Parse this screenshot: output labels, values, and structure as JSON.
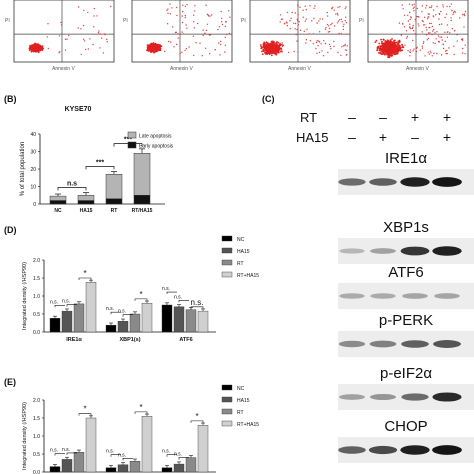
{
  "flow_panel": {
    "y_axis_label": "PI",
    "x_axis_label": "Annexin V",
    "plots": [
      {
        "name": "NC"
      },
      {
        "name": "HA15"
      },
      {
        "name": "RT"
      },
      {
        "name": "RT/HA15"
      }
    ]
  },
  "panel_b": {
    "label": "(B)",
    "chart_data": {
      "type": "bar",
      "stacked": true,
      "title": "KYSE70",
      "xlabel": "",
      "ylabel": "% of total population",
      "categories": [
        "NC",
        "HA15",
        "RT",
        "RT/HA15"
      ],
      "ylim": [
        0,
        40
      ],
      "yticks": [
        "0",
        "10",
        "20",
        "30",
        "40"
      ],
      "series": [
        {
          "name": "Early apoptosis",
          "color": "#111111",
          "values": [
            2,
            2,
            3,
            5
          ]
        },
        {
          "name": "Late apoptosis",
          "color": "#b4b4b4",
          "values": [
            2.5,
            3,
            14,
            24
          ]
        }
      ],
      "error": [
        1.2,
        1.5,
        1.5,
        2.5
      ],
      "significance": [
        {
          "from": 0,
          "to": 1,
          "text": "n.s"
        },
        {
          "from": 1,
          "to": 2,
          "text": "***"
        },
        {
          "from": 2,
          "to": 3,
          "text": "***"
        }
      ]
    }
  },
  "panel_c": {
    "label": "(C)",
    "conditions": [
      {
        "name": "RT",
        "signs": [
          "–",
          "–",
          "+",
          "+"
        ]
      },
      {
        "name": "HA15",
        "signs": [
          "–",
          "+",
          "–",
          "+"
        ]
      }
    ],
    "blots": [
      {
        "name": "IRE1α",
        "intensity": [
          0.55,
          0.6,
          0.9,
          0.95
        ]
      },
      {
        "name": "XBP1s",
        "intensity": [
          0.2,
          0.3,
          0.8,
          0.9
        ]
      },
      {
        "name": "ATF6",
        "intensity": [
          0.25,
          0.25,
          0.28,
          0.28
        ]
      },
      {
        "name": "p-PERK",
        "intensity": [
          0.4,
          0.45,
          0.6,
          0.65
        ]
      },
      {
        "name": "p-eIF2α",
        "intensity": [
          0.3,
          0.35,
          0.55,
          0.85
        ]
      },
      {
        "name": "CHOP",
        "intensity": [
          0.6,
          0.7,
          0.9,
          0.95
        ]
      }
    ]
  },
  "panel_d": {
    "label": "(D)",
    "chart_data": {
      "type": "bar",
      "ylabel": "Integrated density (/HSP90)",
      "ylim": [
        0,
        2
      ],
      "yticks": [
        "0.0",
        "0.5",
        "1.0",
        "1.5",
        "2.0"
      ],
      "categories": [
        "IRE1α",
        "XBP1(s)",
        "ATF6"
      ],
      "series": [
        {
          "name": "NC",
          "color": "#000000",
          "values": [
            0.38,
            0.19,
            0.75
          ]
        },
        {
          "name": "HA15",
          "color": "#555555",
          "values": [
            0.58,
            0.3,
            0.7
          ]
        },
        {
          "name": "RT",
          "color": "#8a8a8a",
          "values": [
            0.78,
            0.5,
            0.62
          ]
        },
        {
          "name": "RT+HA15",
          "color": "#d0d0d0",
          "values": [
            1.38,
            0.8,
            0.58
          ]
        }
      ],
      "significance": [
        {
          "group": 0,
          "text": "*"
        },
        {
          "group": 0,
          "text": "n.s."
        },
        {
          "group": 0,
          "text": "n.s."
        },
        {
          "group": 1,
          "text": "*"
        },
        {
          "group": 1,
          "text": "n.s."
        },
        {
          "group": 1,
          "text": "n.s."
        },
        {
          "group": 2,
          "text": "n.s."
        },
        {
          "group": 2,
          "text": "n.s."
        },
        {
          "group": 2,
          "text": "n.s."
        }
      ]
    }
  },
  "panel_e": {
    "label": "(E)",
    "chart_data": {
      "type": "bar",
      "ylabel": "Integrated density (/HSP90)",
      "ylim": [
        0,
        2
      ],
      "yticks": [
        "0.0",
        "0.5",
        "1.0",
        "1.5",
        "2.0"
      ],
      "categories": [
        "",
        "",
        ""
      ],
      "series": [
        {
          "name": "NC",
          "color": "#000000",
          "values": [
            0.15,
            0.12,
            0.12
          ]
        },
        {
          "name": "HA15",
          "color": "#555555",
          "values": [
            0.35,
            0.2,
            0.22
          ]
        },
        {
          "name": "RT",
          "color": "#8a8a8a",
          "values": [
            0.55,
            0.3,
            0.4
          ]
        },
        {
          "name": "RT+HA15",
          "color": "#d0d0d0",
          "values": [
            1.5,
            1.55,
            1.3
          ]
        }
      ],
      "significance": [
        {
          "group": 0,
          "text": "*"
        },
        {
          "group": 0,
          "text": "n.s."
        },
        {
          "group": 0,
          "text": "n.s."
        },
        {
          "group": 1,
          "text": "*"
        },
        {
          "group": 1,
          "text": "n.s."
        },
        {
          "group": 1,
          "text": "n.s."
        },
        {
          "group": 2,
          "text": "*"
        },
        {
          "group": 2,
          "text": "n.s."
        },
        {
          "group": 2,
          "text": "n.s."
        }
      ]
    }
  }
}
